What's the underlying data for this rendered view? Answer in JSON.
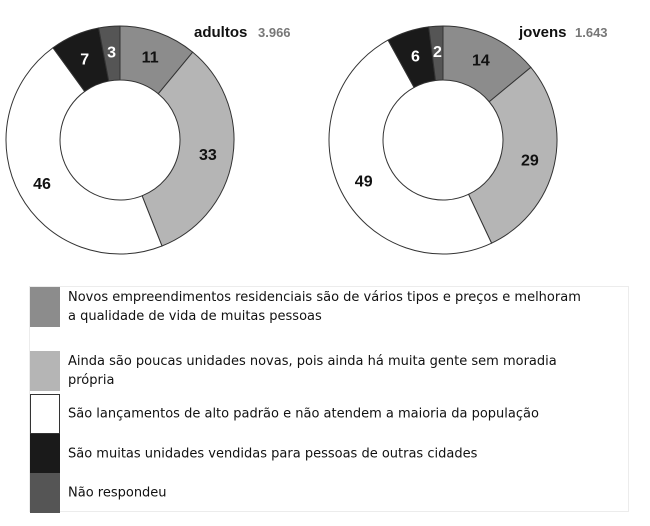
{
  "colors": {
    "agree": "#8c8c8c",
    "few": "#b5b5b5",
    "high": "#ffffff",
    "others": "#1a1a1a",
    "noanswer": "#555555"
  },
  "legend": [
    {
      "key": "agree",
      "label": "Novos empreendimentos residenciais são de vários tipos e preços e melhoram a qualidade de vida de muitas pessoas"
    },
    {
      "key": "few",
      "label": "Ainda são poucas unidades novas, pois ainda há muita gente sem moradia própria"
    },
    {
      "key": "high",
      "label": "São lançamentos de alto padrão e não atendem a maioria da população"
    },
    {
      "key": "others",
      "label": "São muitas unidades vendidas para pessoas de outras cidades"
    },
    {
      "key": "noanswer",
      "label": "Não respondeu"
    }
  ],
  "chart_data": [
    {
      "type": "pie",
      "title": "adultos",
      "subtitle": "3.966",
      "categories": [
        "Novos empreendimentos residenciais são de vários tipos e preços e melhoram a qualidade de vida de muitas pessoas",
        "Ainda são poucas unidades novas, pois ainda há muita gente sem moradia própria",
        "São lançamentos de alto padrão e não atendem a maioria da população",
        "São muitas unidades vendidas para pessoas de outras cidades",
        "Não respondeu"
      ],
      "keys": [
        "agree",
        "few",
        "high",
        "others",
        "noanswer"
      ],
      "values": [
        11,
        33,
        46,
        7,
        3
      ]
    },
    {
      "type": "pie",
      "title": "jovens",
      "subtitle": "1.643",
      "categories": [
        "Novos empreendimentos residenciais são de vários tipos e preços e melhoram a qualidade de vida de muitas pessoas",
        "Ainda são poucas unidades novas, pois ainda há muita gente sem moradia própria",
        "São lançamentos de alto padrão e não atendem a maioria da população",
        "São muitas unidades vendidas para pessoas de outras cidades",
        "Não respondeu"
      ],
      "keys": [
        "agree",
        "few",
        "high",
        "others",
        "noanswer"
      ],
      "values": [
        14,
        29,
        49,
        6,
        2
      ]
    }
  ]
}
